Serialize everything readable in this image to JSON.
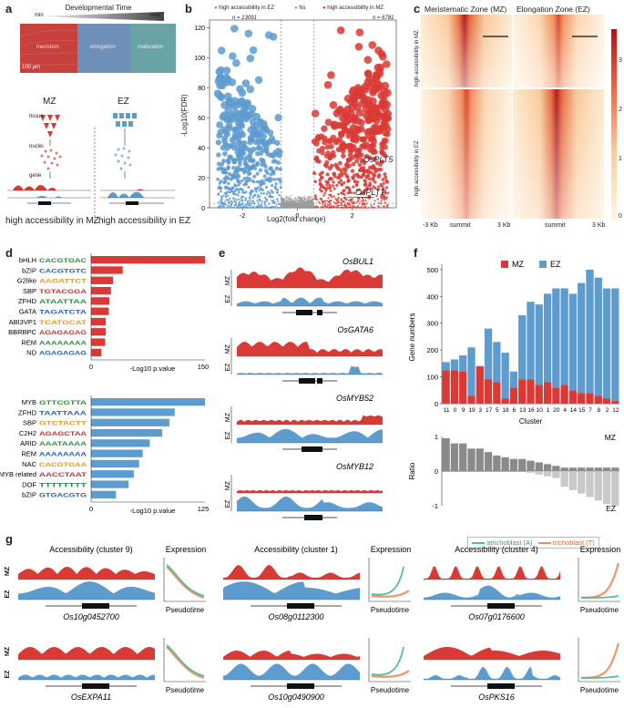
{
  "panels": {
    "a": "a",
    "b": "b",
    "c": "c",
    "d": "d",
    "e": "e",
    "f": "f",
    "g": "g"
  },
  "colors": {
    "mz": "#d93a35",
    "ez": "#5e9bcf",
    "ns": "#9b9b9b",
    "atri": "#4dbf9b",
    "tri": "#f08a57"
  },
  "panel_a": {
    "title": "Developmental Time",
    "min": "min",
    "max": "max",
    "zones": [
      "meristem",
      "elongation",
      "maturation"
    ],
    "scale": "100 μm",
    "mz": "MZ",
    "ez": "EZ",
    "row_labels": [
      "tissue",
      "nuclei",
      "gene"
    ],
    "caption_mz": "high accessibility in MZ",
    "caption_ez": "high accessibility in EZ"
  },
  "panel_b": {
    "legend": [
      "high accessibility in EZ",
      "Ns",
      "high accessibility in MZ"
    ],
    "n_ez": "n = 13091",
    "n_mz": "n = 6781",
    "ylabel": "-Log10(FDR)",
    "xlabel": "Log2(fold change)",
    "xticks": [
      "-2",
      "0",
      "2"
    ],
    "yticks": [
      "0",
      "20",
      "40",
      "60",
      "80",
      "100",
      "120"
    ],
    "genes": [
      "OsPLT5",
      "OsPLT1"
    ]
  },
  "panel_c": {
    "titles": [
      "Meristematic Zone (MZ)",
      "Elongation Zone (EZ)"
    ],
    "row_labels": [
      "high accessibility in MZ",
      "high accessibility in EZ"
    ],
    "xticks": [
      "-3 Kb",
      "summit",
      "3 Kb"
    ],
    "cbar_ticks": [
      "0",
      "1",
      "2",
      "3"
    ]
  },
  "panel_d": {
    "xlabel": "-Log10 p.value",
    "top": {
      "families": [
        "bHLH",
        "bZIP",
        "G2like",
        "SBP",
        "ZFHD",
        "GATA",
        "ABI3VP1",
        "BBRBPC",
        "REM",
        "ND"
      ],
      "motifs": [
        "CACGTGAC",
        "CACGTGTC",
        "AAGATTCT",
        "TGTACGGA",
        "ATAATTAA",
        "TAGATCTA",
        "TCATGCAT",
        "AGAGAGAG",
        "AAAAAAAA",
        "AGAGAGAG"
      ],
      "values": [
        155,
        43,
        30,
        27,
        25,
        24,
        20,
        20,
        19,
        14
      ],
      "axis_ticks": [
        "0",
        "150"
      ],
      "xmax": 155
    },
    "bottom": {
      "families": [
        "MYB",
        "ZFHD",
        "SBP",
        "C2H2",
        "ARID",
        "REM",
        "NAC",
        "MYB related",
        "DOF",
        "bZIP"
      ],
      "motifs": [
        "GTTCGTTA",
        "TAATTAAA",
        "GTCTACTT",
        "AGAGCTAA",
        "AAATAAAA",
        "AAAAAAAA",
        "CACGTGAA",
        "AACCTAAT",
        "TTTTTTTT",
        "GTGACGTG"
      ],
      "values": [
        128,
        94,
        88,
        80,
        66,
        58,
        54,
        48,
        42,
        28
      ],
      "axis_ticks": [
        "0",
        "125"
      ],
      "xmax": 128
    }
  },
  "panel_e": {
    "genes": [
      "OsBUL1",
      "OsGATA6",
      "OsMYB52",
      "OsMYB12"
    ],
    "mz": "MZ",
    "ez": "EZ"
  },
  "panel_f": {
    "legend": [
      "MZ",
      "EZ"
    ],
    "clusters": [
      "11",
      "0",
      "9",
      "19",
      "3",
      "17",
      "5",
      "18",
      "6",
      "13",
      "16",
      "10",
      "1",
      "20",
      "4",
      "14",
      "15",
      "7",
      "8",
      "2",
      "12"
    ],
    "mz_values": [
      125,
      125,
      120,
      30,
      140,
      90,
      80,
      20,
      60,
      90,
      90,
      70,
      80,
      60,
      70,
      50,
      40,
      40,
      30,
      20,
      10
    ],
    "ez_values": [
      30,
      40,
      60,
      180,
      0,
      190,
      150,
      170,
      60,
      240,
      290,
      300,
      330,
      370,
      360,
      360,
      410,
      460,
      440,
      410,
      420
    ],
    "ratio": [
      0.85,
      0.7,
      0.7,
      0.55,
      0.55,
      0.45,
      0.35,
      0.3,
      0.25,
      0.25,
      0.2,
      0.15,
      0.1,
      0.05,
      -0.2,
      -0.3,
      -0.4,
      -0.5,
      -0.6,
      -0.7,
      -0.95
    ],
    "ylabel": "Gene numbers",
    "yticks": [
      "0",
      "100",
      "200",
      "300",
      "400",
      "500"
    ],
    "xlabel": "Cluster",
    "ratio_label": "Ratio",
    "ratio_ticks": [
      "1",
      "0",
      "-1"
    ],
    "mz": "MZ",
    "ez": "EZ"
  },
  "panel_g": {
    "legend": [
      "atrichoblast (A)",
      "trichoblast (T)"
    ],
    "titles": [
      "Accessibility (cluster 9)",
      "Accessibility (cluster 1)",
      "Accessibility (cluster 4)"
    ],
    "expr": "Expression",
    "pseudotime": "Pseudotime",
    "genes_top": [
      "Os10g0452700",
      "Os08g0112300",
      "Os07g0176600"
    ],
    "genes_bottom": [
      "OsEXPA11",
      "Os10g0490900",
      "OsPKS16"
    ],
    "mz": "MZ",
    "ez": "EZ"
  }
}
